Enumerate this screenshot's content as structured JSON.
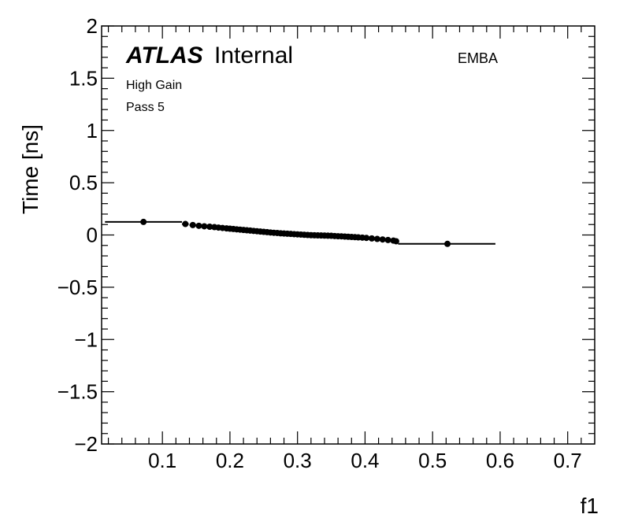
{
  "chart_data": {
    "type": "scatter",
    "title": "",
    "xlabel": "f1",
    "ylabel": "Time [ns]",
    "xlim": [
      0.01,
      0.74
    ],
    "ylim": [
      -2,
      2
    ],
    "xticks": [
      0.1,
      0.2,
      0.3,
      0.4,
      0.5,
      0.6,
      0.7
    ],
    "yticks": [
      -2,
      -1.5,
      -1,
      -0.5,
      0,
      0.5,
      1,
      1.5,
      2
    ],
    "xtick_labels": [
      "0.1",
      "0.2",
      "0.3",
      "0.4",
      "0.5",
      "0.6",
      "0.7"
    ],
    "ytick_labels": [
      "−2",
      "−1.5",
      "−1",
      "−0.5",
      "0",
      "0.5",
      "1",
      "1.5",
      "2"
    ],
    "grid": false,
    "annotations": {
      "atlas": "ATLAS",
      "status": "Internal",
      "gain": "High Gain",
      "pass": "Pass 5",
      "region": "EMBA"
    },
    "points": [
      {
        "x": 0.072,
        "y": 0.125,
        "xlo": 0.015,
        "xhi": 0.129
      },
      {
        "x": 0.134,
        "y": 0.105,
        "xlo": 0.129,
        "xhi": 0.139
      },
      {
        "x": 0.145,
        "y": 0.095
      },
      {
        "x": 0.154,
        "y": 0.088
      },
      {
        "x": 0.162,
        "y": 0.083
      },
      {
        "x": 0.17,
        "y": 0.079
      },
      {
        "x": 0.177,
        "y": 0.075
      },
      {
        "x": 0.183,
        "y": 0.071
      },
      {
        "x": 0.189,
        "y": 0.067
      },
      {
        "x": 0.195,
        "y": 0.063
      },
      {
        "x": 0.2,
        "y": 0.06
      },
      {
        "x": 0.205,
        "y": 0.057
      },
      {
        "x": 0.21,
        "y": 0.054
      },
      {
        "x": 0.215,
        "y": 0.051
      },
      {
        "x": 0.22,
        "y": 0.048
      },
      {
        "x": 0.225,
        "y": 0.045
      },
      {
        "x": 0.23,
        "y": 0.042
      },
      {
        "x": 0.235,
        "y": 0.039
      },
      {
        "x": 0.24,
        "y": 0.036
      },
      {
        "x": 0.245,
        "y": 0.033
      },
      {
        "x": 0.25,
        "y": 0.03
      },
      {
        "x": 0.255,
        "y": 0.027
      },
      {
        "x": 0.26,
        "y": 0.024
      },
      {
        "x": 0.265,
        "y": 0.021
      },
      {
        "x": 0.27,
        "y": 0.019
      },
      {
        "x": 0.275,
        "y": 0.016
      },
      {
        "x": 0.28,
        "y": 0.014
      },
      {
        "x": 0.285,
        "y": 0.012
      },
      {
        "x": 0.29,
        "y": 0.01
      },
      {
        "x": 0.295,
        "y": 0.008
      },
      {
        "x": 0.3,
        "y": 0.006
      },
      {
        "x": 0.305,
        "y": 0.004
      },
      {
        "x": 0.31,
        "y": 0.002
      },
      {
        "x": 0.315,
        "y": 0.0
      },
      {
        "x": 0.32,
        "y": -0.002
      },
      {
        "x": 0.325,
        "y": -0.003
      },
      {
        "x": 0.33,
        "y": -0.004
      },
      {
        "x": 0.335,
        "y": -0.005
      },
      {
        "x": 0.34,
        "y": -0.006
      },
      {
        "x": 0.345,
        "y": -0.007
      },
      {
        "x": 0.35,
        "y": -0.008
      },
      {
        "x": 0.355,
        "y": -0.01
      },
      {
        "x": 0.36,
        "y": -0.012
      },
      {
        "x": 0.365,
        "y": -0.013
      },
      {
        "x": 0.37,
        "y": -0.015
      },
      {
        "x": 0.375,
        "y": -0.017
      },
      {
        "x": 0.38,
        "y": -0.019
      },
      {
        "x": 0.385,
        "y": -0.021
      },
      {
        "x": 0.39,
        "y": -0.023
      },
      {
        "x": 0.396,
        "y": -0.025
      },
      {
        "x": 0.402,
        "y": -0.028
      },
      {
        "x": 0.41,
        "y": -0.033
      },
      {
        "x": 0.418,
        "y": -0.038
      },
      {
        "x": 0.426,
        "y": -0.043
      },
      {
        "x": 0.434,
        "y": -0.048
      },
      {
        "x": 0.442,
        "y": -0.054
      },
      {
        "x": 0.446,
        "y": -0.06,
        "xlo": 0.443,
        "xhi": 0.449
      },
      {
        "x": 0.522,
        "y": -0.085,
        "xlo": 0.449,
        "xhi": 0.593
      }
    ]
  }
}
